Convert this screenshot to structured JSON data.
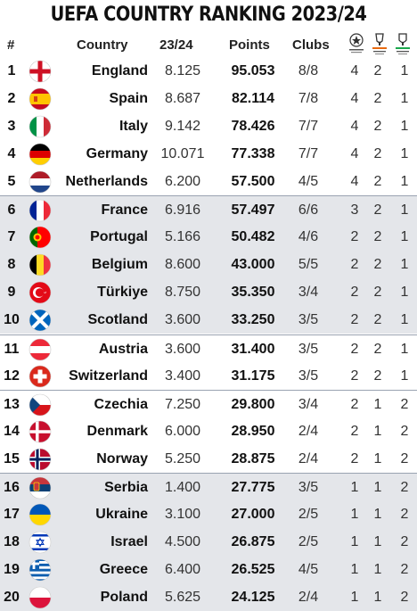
{
  "title": "UEFA COUNTRY RANKING 2023/24",
  "headers": {
    "rank": "#",
    "country": "Country",
    "season": "23/24",
    "points": "Points",
    "clubs": "Clubs",
    "ucl_icon": "champions-league-logo-icon",
    "uel_icon": "europa-league-logo-icon",
    "uecl_icon": "conference-league-logo-icon"
  },
  "rows": [
    {
      "rank": "1",
      "country": "England",
      "season": "8.125",
      "points": "95.053",
      "clubs": "8/8",
      "ucl": "4",
      "uel": "2",
      "uecl": "1",
      "flag": "england-flag-icon"
    },
    {
      "rank": "2",
      "country": "Spain",
      "season": "8.687",
      "points": "82.114",
      "clubs": "7/8",
      "ucl": "4",
      "uel": "2",
      "uecl": "1",
      "flag": "spain-flag-icon"
    },
    {
      "rank": "3",
      "country": "Italy",
      "season": "9.142",
      "points": "78.426",
      "clubs": "7/7",
      "ucl": "4",
      "uel": "2",
      "uecl": "1",
      "flag": "italy-flag-icon"
    },
    {
      "rank": "4",
      "country": "Germany",
      "season": "10.071",
      "points": "77.338",
      "clubs": "7/7",
      "ucl": "4",
      "uel": "2",
      "uecl": "1",
      "flag": "germany-flag-icon"
    },
    {
      "rank": "5",
      "country": "Netherlands",
      "season": "6.200",
      "points": "57.500",
      "clubs": "4/5",
      "ucl": "4",
      "uel": "2",
      "uecl": "1",
      "flag": "netherlands-flag-icon"
    },
    {
      "rank": "6",
      "country": "France",
      "season": "6.916",
      "points": "57.497",
      "clubs": "6/6",
      "ucl": "3",
      "uel": "2",
      "uecl": "1",
      "flag": "france-flag-icon"
    },
    {
      "rank": "7",
      "country": "Portugal",
      "season": "5.166",
      "points": "50.482",
      "clubs": "4/6",
      "ucl": "2",
      "uel": "2",
      "uecl": "1",
      "flag": "portugal-flag-icon"
    },
    {
      "rank": "8",
      "country": "Belgium",
      "season": "8.600",
      "points": "43.000",
      "clubs": "5/5",
      "ucl": "2",
      "uel": "2",
      "uecl": "1",
      "flag": "belgium-flag-icon"
    },
    {
      "rank": "9",
      "country": "Türkiye",
      "season": "8.750",
      "points": "35.350",
      "clubs": "3/4",
      "ucl": "2",
      "uel": "2",
      "uecl": "1",
      "flag": "turkiye-flag-icon"
    },
    {
      "rank": "10",
      "country": "Scotland",
      "season": "3.600",
      "points": "33.250",
      "clubs": "3/5",
      "ucl": "2",
      "uel": "2",
      "uecl": "1",
      "flag": "scotland-flag-icon"
    },
    {
      "rank": "11",
      "country": "Austria",
      "season": "3.600",
      "points": "31.400",
      "clubs": "3/5",
      "ucl": "2",
      "uel": "2",
      "uecl": "1",
      "flag": "austria-flag-icon"
    },
    {
      "rank": "12",
      "country": "Switzerland",
      "season": "3.400",
      "points": "31.175",
      "clubs": "3/5",
      "ucl": "2",
      "uel": "2",
      "uecl": "1",
      "flag": "switzerland-flag-icon"
    },
    {
      "rank": "13",
      "country": "Czechia",
      "season": "7.250",
      "points": "29.800",
      "clubs": "3/4",
      "ucl": "2",
      "uel": "1",
      "uecl": "2",
      "flag": "czechia-flag-icon"
    },
    {
      "rank": "14",
      "country": "Denmark",
      "season": "6.000",
      "points": "28.950",
      "clubs": "2/4",
      "ucl": "2",
      "uel": "1",
      "uecl": "2",
      "flag": "denmark-flag-icon"
    },
    {
      "rank": "15",
      "country": "Norway",
      "season": "5.250",
      "points": "28.875",
      "clubs": "2/4",
      "ucl": "2",
      "uel": "1",
      "uecl": "2",
      "flag": "norway-flag-icon"
    },
    {
      "rank": "16",
      "country": "Serbia",
      "season": "1.400",
      "points": "27.775",
      "clubs": "3/5",
      "ucl": "1",
      "uel": "1",
      "uecl": "2",
      "flag": "serbia-flag-icon"
    },
    {
      "rank": "17",
      "country": "Ukraine",
      "season": "3.100",
      "points": "27.000",
      "clubs": "2/5",
      "ucl": "1",
      "uel": "1",
      "uecl": "2",
      "flag": "ukraine-flag-icon"
    },
    {
      "rank": "18",
      "country": "Israel",
      "season": "4.500",
      "points": "26.875",
      "clubs": "2/5",
      "ucl": "1",
      "uel": "1",
      "uecl": "2",
      "flag": "israel-flag-icon"
    },
    {
      "rank": "19",
      "country": "Greece",
      "season": "6.400",
      "points": "26.525",
      "clubs": "4/5",
      "ucl": "1",
      "uel": "1",
      "uecl": "2",
      "flag": "greece-flag-icon"
    },
    {
      "rank": "20",
      "country": "Poland",
      "season": "5.625",
      "points": "24.125",
      "clubs": "2/4",
      "ucl": "1",
      "uel": "1",
      "uecl": "2",
      "flag": "poland-flag-icon"
    }
  ],
  "colors": {
    "row_shade": "#e4e6ea",
    "separator": "#9aa3b1",
    "text": "#111111"
  }
}
